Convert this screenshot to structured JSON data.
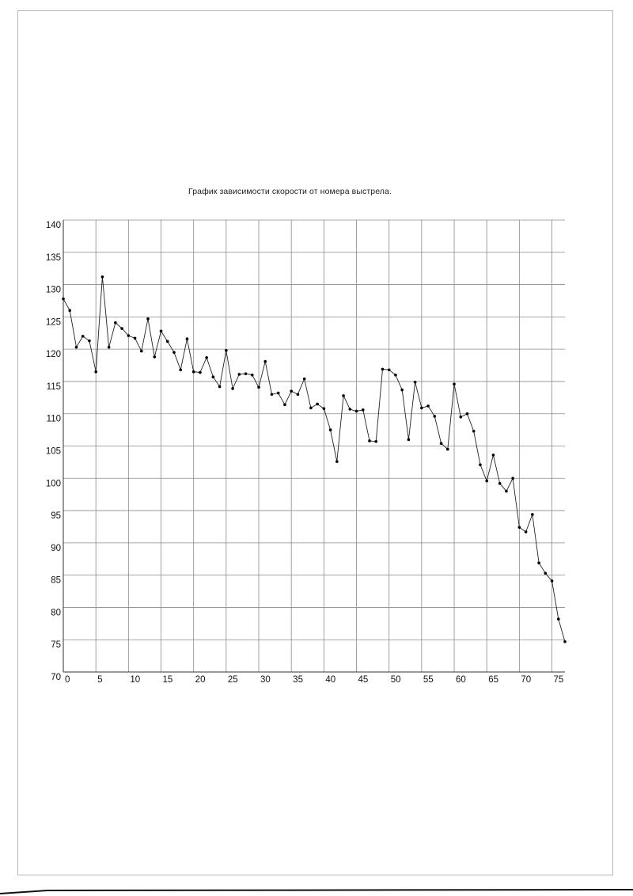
{
  "chart_data": {
    "type": "line",
    "title": "График зависимости скорости от номера выстрела.",
    "xlabel": "",
    "ylabel": "",
    "xlim": [
      0,
      77
    ],
    "ylim": [
      70,
      140
    ],
    "x_ticks": [
      0,
      5,
      10,
      15,
      20,
      25,
      30,
      35,
      40,
      45,
      50,
      55,
      60,
      65,
      70,
      75
    ],
    "y_ticks": [
      70,
      75,
      80,
      85,
      90,
      95,
      100,
      105,
      110,
      115,
      120,
      125,
      130,
      135,
      140
    ],
    "grid": true,
    "series": [
      {
        "x": [
          0,
          1,
          2,
          3,
          4,
          5,
          6,
          7,
          8,
          9,
          10,
          11,
          12,
          13,
          14,
          15,
          16,
          17,
          18,
          19,
          20,
          21,
          22,
          23,
          24,
          25,
          26,
          27,
          28,
          29,
          30,
          31,
          32,
          33,
          34,
          35,
          36,
          37,
          38,
          39,
          40,
          41,
          42,
          43,
          44,
          45,
          46,
          47,
          48,
          49,
          50,
          51,
          52,
          53,
          54,
          55,
          56,
          57,
          58,
          59,
          60,
          61,
          62,
          63,
          64,
          65,
          66,
          67,
          68,
          69,
          70,
          71,
          72,
          73,
          74,
          75,
          76,
          77
        ],
        "values": [
          127.8,
          126.0,
          120.3,
          122.0,
          121.3,
          116.5,
          131.2,
          120.3,
          124.1,
          123.2,
          122.1,
          121.7,
          119.7,
          124.7,
          118.8,
          122.8,
          121.2,
          119.5,
          116.8,
          121.6,
          116.5,
          116.4,
          118.7,
          115.7,
          114.2,
          119.8,
          113.9,
          116.1,
          116.2,
          116.0,
          114.1,
          118.1,
          113.0,
          113.2,
          111.4,
          113.5,
          113.0,
          115.4,
          110.9,
          111.5,
          110.8,
          107.5,
          102.6,
          112.8,
          110.7,
          110.4,
          110.6,
          105.8,
          105.7,
          116.9,
          116.8,
          116.0,
          113.7,
          106.0,
          114.9,
          110.9,
          111.2,
          109.6,
          105.4,
          104.5,
          114.6,
          109.5,
          110.0,
          107.3,
          102.1,
          99.6,
          103.6,
          99.2,
          98.0,
          100.0,
          92.4,
          91.7,
          94.4,
          86.9,
          85.3,
          84.1,
          78.2,
          74.7
        ]
      }
    ]
  }
}
